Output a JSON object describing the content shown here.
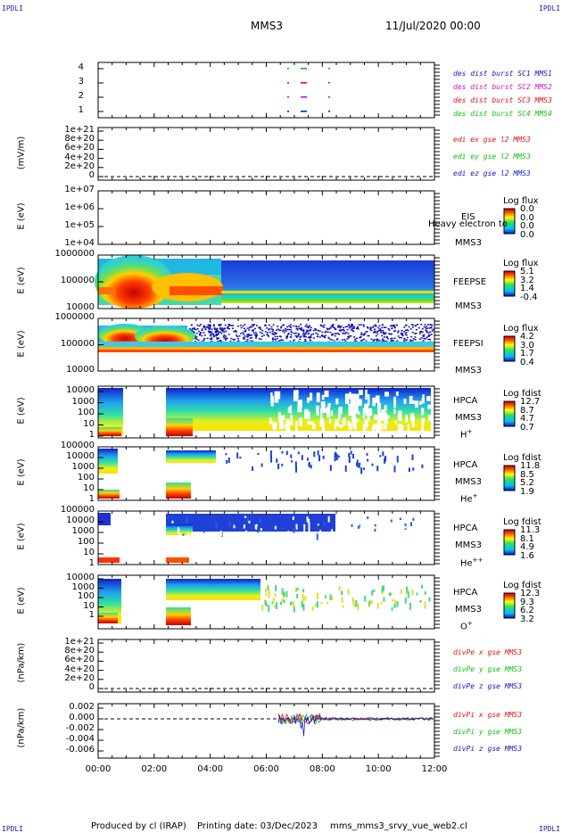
{
  "header": {
    "corner_label": "IPDLI",
    "title": "MMS3",
    "datetime": "11/Jul/2020 00:00"
  },
  "footer": {
    "produced_by": "Produced by cl (IRAP)",
    "printing_date": "Printing date: 03/Dec/2023",
    "script": "mms_mms3_srvy_vue_web2.cl"
  },
  "colors": {
    "mms1": "#1515c8",
    "mms2": "#d010d0",
    "mms3": "#e01010",
    "mms4": "#10c010",
    "x_component": "#e01010",
    "y_component": "#10c010",
    "z_component": "#1515c8"
  },
  "chart_data": [
    {
      "type": "scatter",
      "panel": "burst",
      "y_ticks": [
        "4",
        "3",
        "2",
        "1"
      ],
      "legend": [
        "des dist burst SC1 MMS1",
        "des dist burst SC2 MMS2",
        "des dist burst SC3 MMS3",
        "des dist burst SC4 MMS4"
      ]
    },
    {
      "type": "line",
      "panel": "edi",
      "ylabel": "(mV/m)",
      "y_ticks": [
        "1e+21",
        "8e+20",
        "6e+20",
        "4e+20",
        "2e+20",
        "0"
      ],
      "legend": [
        "edi ex gse l2 MMS3",
        "edi ey gse l2 MMS3",
        "edi ez gse l2 MMS3"
      ]
    },
    {
      "type": "heatmap",
      "panel": "EIS",
      "ylabel": "E (eV)",
      "y_ticks": [
        "1e+07",
        "1e+06",
        "1e+05",
        "1e+04"
      ],
      "instrument": "EIS",
      "species": "Heavy electron to",
      "spacecraft": "MMS3",
      "colorbar_title": "Log flux",
      "colorbar_ticks": [
        "0.0",
        "0.0",
        "0.0",
        "0.0"
      ]
    },
    {
      "type": "heatmap",
      "panel": "FEEPSE",
      "ylabel": "E (eV)",
      "y_ticks": [
        "1000000",
        "100000",
        "10000"
      ],
      "instrument": "FEEPSE",
      "spacecraft": "MMS3",
      "colorbar_title": "Log flux",
      "colorbar_ticks": [
        "5.1",
        "3.2",
        "1.4",
        "-0.4"
      ]
    },
    {
      "type": "heatmap",
      "panel": "FEEPSI",
      "ylabel": "E (eV)",
      "y_ticks": [
        "1000000",
        "100000",
        "10000"
      ],
      "instrument": "FEEPSI",
      "spacecraft": "MMS3",
      "colorbar_title": "Log flux",
      "colorbar_ticks": [
        "4.2",
        "3.0",
        "1.7",
        "0.4"
      ]
    },
    {
      "type": "heatmap",
      "panel": "HPCA_H",
      "ylabel": "E (eV)",
      "y_ticks": [
        "10000",
        "1000",
        "100",
        "10",
        "1"
      ],
      "instrument": "HPCA",
      "spacecraft": "MMS3",
      "species": "H",
      "species_sup": "+",
      "colorbar_title": "Log fdist",
      "colorbar_ticks": [
        "12.7",
        "8.7",
        "4.7",
        "0.7"
      ]
    },
    {
      "type": "heatmap",
      "panel": "HPCA_He1",
      "ylabel": "E (eV)",
      "y_ticks": [
        "100000",
        "10000",
        "1000",
        "100",
        "10",
        "1"
      ],
      "instrument": "HPCA",
      "spacecraft": "MMS3",
      "species": "He",
      "species_sup": "+",
      "colorbar_title": "Log fdist",
      "colorbar_ticks": [
        "11.8",
        "8.5",
        "5.2",
        "1.9"
      ]
    },
    {
      "type": "heatmap",
      "panel": "HPCA_He2",
      "ylabel": "E (eV)",
      "y_ticks": [
        "100000",
        "10000",
        "1000",
        "100",
        "10",
        "1"
      ],
      "instrument": "HPCA",
      "spacecraft": "MMS3",
      "species": "He",
      "species_sup": "++",
      "colorbar_title": "Log fdist",
      "colorbar_ticks": [
        "11.3",
        "8.1",
        "4.9",
        "1.6"
      ]
    },
    {
      "type": "heatmap",
      "panel": "HPCA_O",
      "ylabel": "E (eV)",
      "y_ticks": [
        "10000",
        "1000",
        "100",
        "10",
        "1"
      ],
      "instrument": "HPCA",
      "spacecraft": "MMS3",
      "species": "O",
      "species_sup": "+",
      "colorbar_title": "Log fdist",
      "colorbar_ticks": [
        "12.3",
        "9.3",
        "6.2",
        "3.2"
      ]
    },
    {
      "type": "line",
      "panel": "divPe",
      "ylabel": "(nPa/km)",
      "y_ticks": [
        "1e+21",
        "8e+20",
        "6e+20",
        "4e+20",
        "2e+20",
        "0"
      ],
      "legend": [
        "divPe x gse MMS3",
        "divPe y gse MMS3",
        "divPe z gse MMS3"
      ]
    },
    {
      "type": "line",
      "panel": "divPi",
      "ylabel": "(nPa/km)",
      "y_ticks": [
        "0.002",
        "0.000",
        "-0.002",
        "-0.004",
        "-0.006"
      ],
      "legend": [
        "divPi x gse MMS3",
        "divPi y gse MMS3",
        "divPi z gse MMS3"
      ]
    }
  ],
  "x_axis": {
    "ticks": [
      "00:00",
      "02:00",
      "04:00",
      "06:00",
      "08:00",
      "10:00",
      "12:00"
    ]
  }
}
